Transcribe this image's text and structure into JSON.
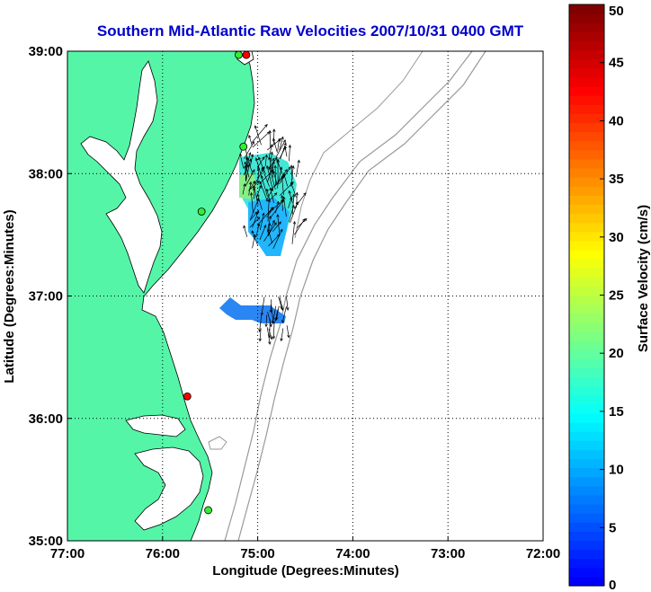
{
  "map": {
    "title": "Southern Mid-Atlantic Raw Velocities 2007/10/31 0400 GMT",
    "xlabel": "Longitude (Degrees:Minutes)",
    "ylabel": "Latitude (Degrees:Minutes)",
    "x_ticks": [
      "77:00",
      "76:00",
      "75:00",
      "74:00",
      "73:00",
      "72:00"
    ],
    "y_ticks": [
      "39:00",
      "38:00",
      "37:00",
      "36:00",
      "35:00"
    ],
    "lon_range": [
      -77,
      -72
    ],
    "lat_range": [
      35,
      39
    ],
    "grid": true,
    "land_color": "#55f5a8",
    "land_outline_color": "#000000",
    "bathymetry_color": "#999999",
    "arrow_color": "#000000",
    "colors": {
      "title": "#0000cc"
    }
  },
  "stations": [
    {
      "lon": -75.12,
      "lat": 38.97,
      "status": "red"
    },
    {
      "lon": -75.2,
      "lat": 38.97,
      "status": "green"
    },
    {
      "lon": -75.15,
      "lat": 38.22,
      "status": "green"
    },
    {
      "lon": -75.59,
      "lat": 37.69,
      "status": "green"
    },
    {
      "lon": -75.74,
      "lat": 36.18,
      "status": "red"
    },
    {
      "lon": -75.52,
      "lat": 35.25,
      "status": "green"
    }
  ],
  "colorbar": {
    "label": "Surface Velocity (cm/s)",
    "min": 0,
    "max": 50,
    "ticks": [
      "0",
      "5",
      "10",
      "15",
      "20",
      "25",
      "30",
      "35",
      "40",
      "45",
      "50"
    ],
    "colormap": "jet"
  }
}
